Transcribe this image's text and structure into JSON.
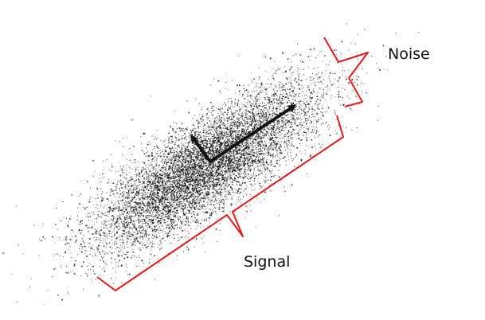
{
  "labels": {
    "noise": "Noise",
    "signal": "Signal"
  },
  "colors": {
    "background": "#ffffff",
    "points": "#111111",
    "arrows": "#111111",
    "braces": "#e21b1b"
  },
  "scatter": {
    "count": 9000,
    "seed": 7
  }
}
